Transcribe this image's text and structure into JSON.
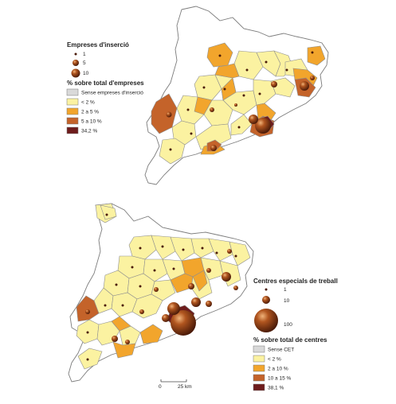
{
  "colors": {
    "none": "#d9d9d9",
    "c1": "#fbf2a1",
    "c2": "#f2a52c",
    "c3": "#c4632a",
    "c4": "#6e1c1c",
    "bubble": "#8a3a16"
  },
  "map_top": {
    "size_legend": {
      "title": "Empreses d'inserció",
      "items": [
        {
          "label": "1",
          "value": 1
        },
        {
          "label": "5",
          "value": 5
        },
        {
          "label": "10",
          "value": 10
        }
      ]
    },
    "class_legend": {
      "title": "% sobre total d'empreses",
      "items": [
        {
          "label": "Sense empreses d'inserció",
          "color": "none"
        },
        {
          "label": "< 2 %",
          "color": "c1"
        },
        {
          "label": "2 a 5 %",
          "color": "c2"
        },
        {
          "label": "5 a 10 %",
          "color": "c3"
        },
        {
          "label": "34,2 %",
          "color": "c4"
        }
      ]
    }
  },
  "map_bottom": {
    "size_legend": {
      "title": "Centres especials de treball",
      "items": [
        {
          "label": "1",
          "value": 1
        },
        {
          "label": "10",
          "value": 10
        },
        {
          "label": "100",
          "value": 100
        }
      ]
    },
    "class_legend": {
      "title": "% sobre total de centres",
      "items": [
        {
          "label": "Sense CET",
          "color": "none"
        },
        {
          "label": "< 2 %",
          "color": "c1"
        },
        {
          "label": "2 a 10 %",
          "color": "c2"
        },
        {
          "label": "10 a 15 %",
          "color": "c3"
        },
        {
          "label": "38,1 %",
          "color": "c4"
        }
      ]
    },
    "scale_bar": {
      "start": "0",
      "end": "25 km"
    }
  }
}
